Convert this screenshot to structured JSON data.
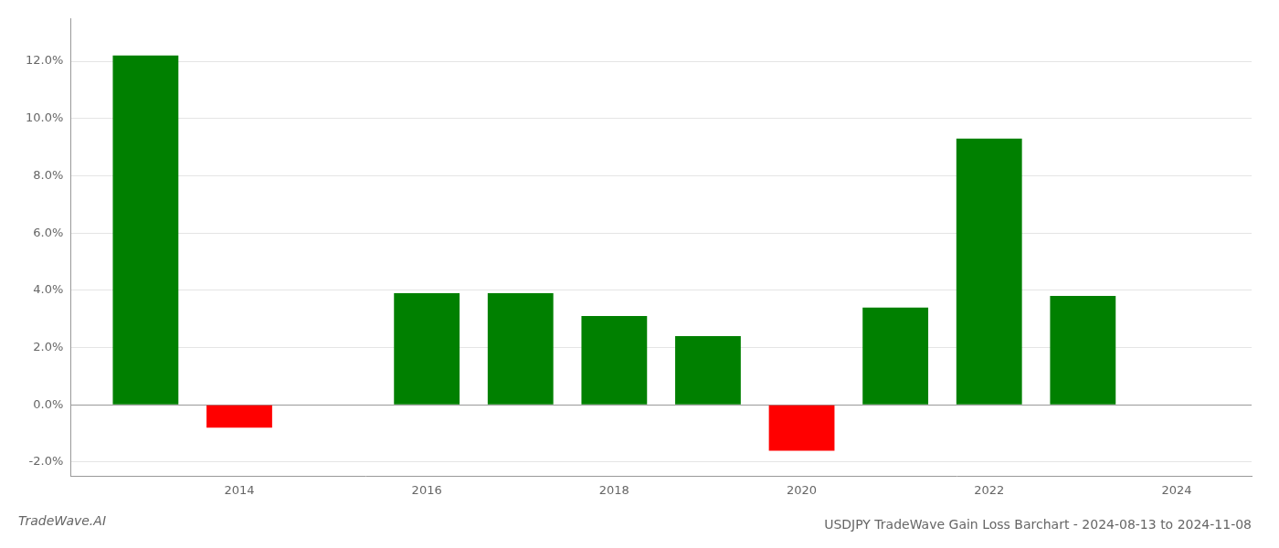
{
  "chart_data": {
    "type": "bar",
    "title": "USDJPY TradeWave Gain Loss Barchart - 2024-08-13 to 2024-11-08",
    "annotations": [
      "TradeWave.AI"
    ],
    "x": [
      2013,
      2014,
      2016,
      2017,
      2018,
      2019,
      2020,
      2021,
      2022,
      2023
    ],
    "values": [
      0.122,
      -0.008,
      0.039,
      0.039,
      0.031,
      0.024,
      -0.016,
      0.034,
      0.093,
      0.038
    ],
    "colors": [
      "#008000",
      "#ff0000",
      "#008000",
      "#008000",
      "#008000",
      "#008000",
      "#ff0000",
      "#008000",
      "#008000",
      "#008000"
    ],
    "xlim": [
      2012.2,
      2024.8
    ],
    "xticks": [
      2014,
      2016,
      2018,
      2020,
      2022,
      2024
    ],
    "ylim": [
      -0.025,
      0.135
    ],
    "yticks": [
      {
        "value": -0.02,
        "label": "-2.0%"
      },
      {
        "value": 0.0,
        "label": "0.0%"
      },
      {
        "value": 0.02,
        "label": "2.0%"
      },
      {
        "value": 0.04,
        "label": "4.0%"
      },
      {
        "value": 0.06,
        "label": "6.0%"
      },
      {
        "value": 0.08,
        "label": "8.0%"
      },
      {
        "value": 0.1,
        "label": "10.0%"
      },
      {
        "value": 0.12,
        "label": "12.0%"
      }
    ],
    "grid": "y"
  }
}
